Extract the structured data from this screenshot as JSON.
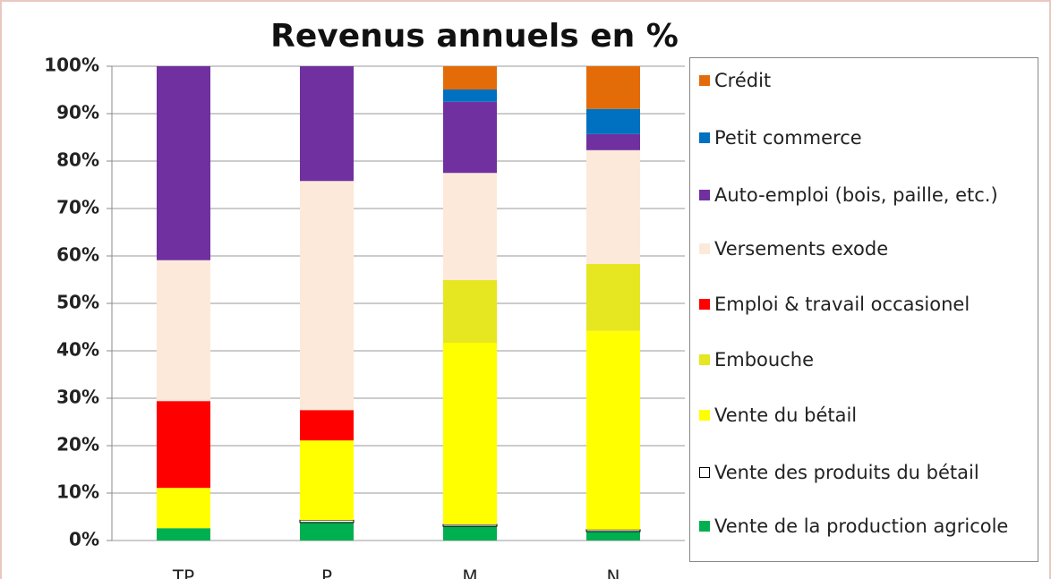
{
  "chart_data": {
    "type": "stacked_bar",
    "title": "Revenus annuels  en %",
    "categories": [
      "TP",
      "P",
      "M",
      "N"
    ],
    "series": [
      {
        "name": "Vente de la production agricole",
        "color": "#00b050",
        "values": [
          2.6,
          3.8,
          3.0,
          1.9
        ]
      },
      {
        "name": "Vente des produits du bétail",
        "color": "#ffffff",
        "values": [
          0,
          0.5,
          0.4,
          0.4
        ]
      },
      {
        "name": "Vente du bétail",
        "color": "#ffff00",
        "values": [
          8.5,
          16.8,
          38.3,
          41.9
        ]
      },
      {
        "name": "Embouche",
        "color": "#e6e621",
        "values": [
          0,
          0,
          13.2,
          14.1
        ]
      },
      {
        "name": "Emploi & travail occasionel",
        "color": "#ff0000",
        "values": [
          18.3,
          6.4,
          0,
          0
        ]
      },
      {
        "name": "Versements exode",
        "color": "#fde9d9",
        "values": [
          29.7,
          48.3,
          22.6,
          24.0
        ]
      },
      {
        "name": "Auto-emploi (bois, paille, etc.)",
        "color": "#7030a0",
        "values": [
          40.9,
          24.2,
          15.0,
          3.4
        ]
      },
      {
        "name": "Petit commerce",
        "color": "#0070c0",
        "values": [
          0,
          0,
          2.6,
          5.3
        ]
      },
      {
        "name": "Crédit",
        "color": "#e36c09",
        "values": [
          0,
          0,
          4.9,
          9.0
        ]
      }
    ],
    "ylim": [
      0,
      100
    ],
    "yticks": [
      {
        "value": 0,
        "label": "0%"
      },
      {
        "value": 10,
        "label": "10%"
      },
      {
        "value": 20,
        "label": "20%"
      },
      {
        "value": 30,
        "label": "30%"
      },
      {
        "value": 40,
        "label": "40%"
      },
      {
        "value": 50,
        "label": "50%"
      },
      {
        "value": 60,
        "label": "60%"
      },
      {
        "value": 70,
        "label": "70%"
      },
      {
        "value": 80,
        "label": "80%"
      },
      {
        "value": 90,
        "label": "90%"
      },
      {
        "value": 100,
        "label": "100%"
      }
    ],
    "grid": true,
    "legend": "right"
  }
}
